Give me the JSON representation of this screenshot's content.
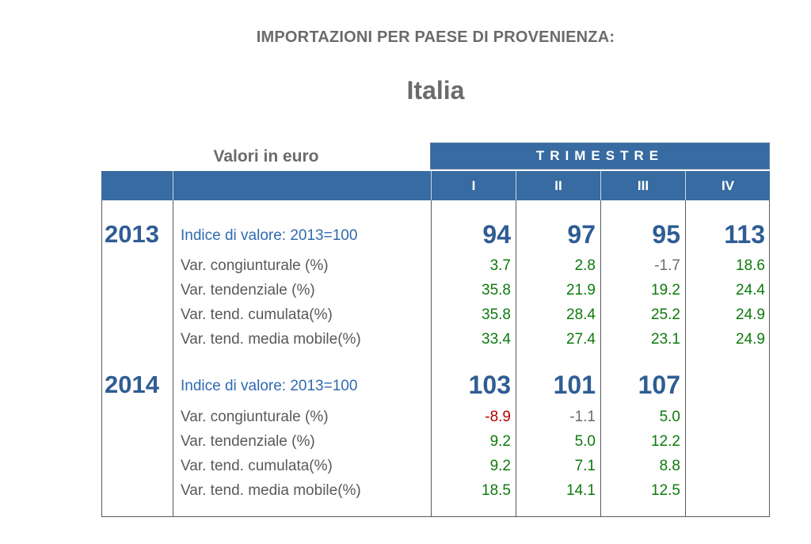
{
  "header": {
    "title": "IMPORTAZIONI PER PAESE DI PROVENIENZA:",
    "subtitle": "Italia",
    "units": "Valori in euro",
    "trimestre": "TRIMESTRE"
  },
  "quarters": [
    "I",
    "II",
    "III",
    "IV"
  ],
  "colors": {
    "header_bg": "#376ba1",
    "positive": "#0d7a0d",
    "negative": "#b40000",
    "neutral": "#6b6b6b",
    "index": "#2f5d93"
  },
  "years": [
    {
      "year": "2013",
      "index_label": "Indice di valore: 2013=100",
      "index_values": [
        "94",
        "97",
        "95",
        "113"
      ],
      "rows": [
        {
          "label": "Var. congiunturale (%)",
          "values": [
            "3.7",
            "2.8",
            "-1.7",
            "18.6"
          ]
        },
        {
          "label": "Var. tendenziale (%)",
          "values": [
            "35.8",
            "21.9",
            "19.2",
            "24.4"
          ]
        },
        {
          "label": "Var. tend. cumulata(%)",
          "values": [
            "35.8",
            "28.4",
            "25.2",
            "24.9"
          ]
        },
        {
          "label": "Var. tend. media mobile(%)",
          "values": [
            "33.4",
            "27.4",
            "23.1",
            "24.9"
          ]
        }
      ]
    },
    {
      "year": "2014",
      "index_label": "Indice di valore: 2013=100",
      "index_values": [
        "103",
        "101",
        "107",
        ""
      ],
      "rows": [
        {
          "label": "Var. congiunturale (%)",
          "values": [
            "-8.9",
            "-1.1",
            "5.0",
            ""
          ]
        },
        {
          "label": "Var. tendenziale (%)",
          "values": [
            "9.2",
            "5.0",
            "12.2",
            ""
          ]
        },
        {
          "label": "Var. tend. cumulata(%)",
          "values": [
            "9.2",
            "7.1",
            "8.8",
            ""
          ]
        },
        {
          "label": "Var. tend. media mobile(%)",
          "values": [
            "18.5",
            "14.1",
            "12.5",
            ""
          ]
        }
      ]
    }
  ]
}
